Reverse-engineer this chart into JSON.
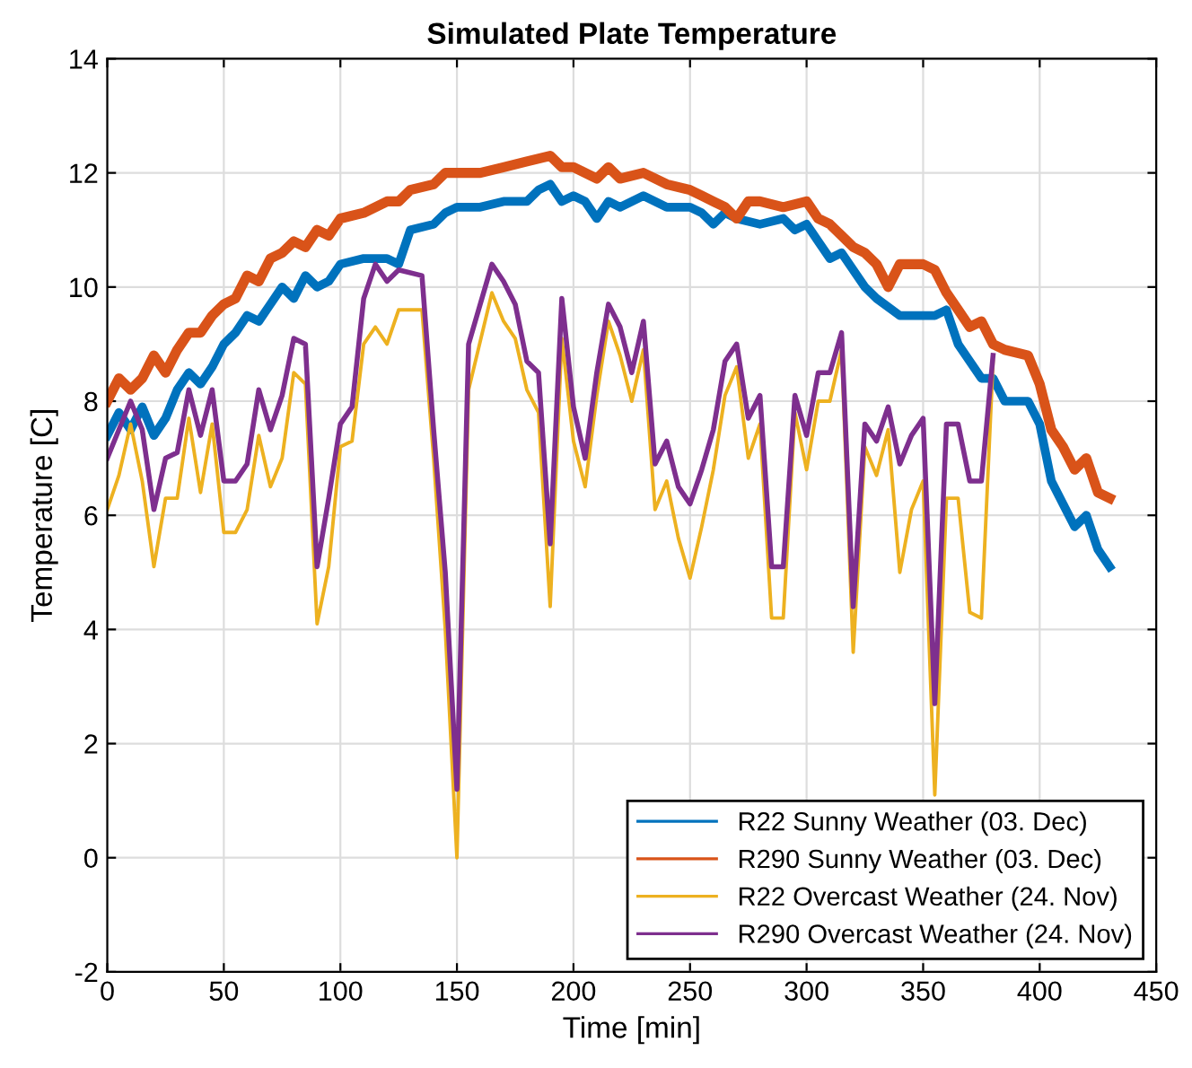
{
  "chart_data": {
    "type": "line",
    "title": "Simulated Plate Temperature",
    "xlabel": "Time [min]",
    "ylabel": "Temperature [C]",
    "xlim": [
      0,
      450
    ],
    "xticks": [
      0,
      50,
      100,
      150,
      200,
      250,
      300,
      350,
      400,
      450
    ],
    "ylim": [
      -2,
      14
    ],
    "yticks": [
      -2,
      0,
      2,
      4,
      6,
      8,
      10,
      12,
      14
    ],
    "grid": true,
    "legend": "bottom right",
    "line_style": "solid",
    "series": [
      {
        "name": "R22 Sunny Weather (03. Dec)",
        "color": "#0072bd",
        "x": [
          0,
          5,
          10,
          15,
          20,
          25,
          30,
          35,
          40,
          45,
          50,
          55,
          60,
          65,
          70,
          75,
          80,
          85,
          90,
          95,
          100,
          110,
          120,
          125,
          130,
          140,
          145,
          150,
          160,
          170,
          180,
          185,
          190,
          195,
          200,
          205,
          210,
          215,
          220,
          230,
          240,
          250,
          255,
          260,
          265,
          270,
          280,
          290,
          295,
          300,
          305,
          310,
          315,
          320,
          325,
          330,
          340,
          350,
          355,
          360,
          365,
          370,
          375,
          380,
          385,
          395,
          400,
          405,
          410,
          415,
          420,
          425,
          430
        ],
        "values": [
          7.4,
          7.8,
          7.5,
          7.9,
          7.4,
          7.7,
          8.2,
          8.5,
          8.3,
          8.6,
          9.0,
          9.2,
          9.5,
          9.4,
          9.7,
          10.0,
          9.8,
          10.2,
          10.0,
          10.1,
          10.4,
          10.5,
          10.5,
          10.4,
          11.0,
          11.1,
          11.3,
          11.4,
          11.4,
          11.5,
          11.5,
          11.7,
          11.8,
          11.5,
          11.6,
          11.5,
          11.2,
          11.5,
          11.4,
          11.6,
          11.4,
          11.4,
          11.3,
          11.1,
          11.3,
          11.2,
          11.1,
          11.2,
          11.0,
          11.1,
          10.8,
          10.5,
          10.6,
          10.3,
          10.0,
          9.8,
          9.5,
          9.5,
          9.5,
          9.6,
          9.0,
          8.7,
          8.4,
          8.4,
          8.0,
          8.0,
          7.6,
          6.6,
          6.2,
          5.8,
          6.0,
          5.4,
          5.1
        ]
      },
      {
        "name": "R290 Sunny Weather (03. Dec)",
        "color": "#d95319",
        "x": [
          0,
          5,
          10,
          15,
          20,
          25,
          30,
          35,
          40,
          45,
          50,
          55,
          60,
          65,
          70,
          75,
          80,
          85,
          90,
          95,
          100,
          110,
          120,
          125,
          130,
          140,
          145,
          150,
          160,
          170,
          180,
          190,
          195,
          200,
          210,
          215,
          220,
          230,
          240,
          250,
          255,
          260,
          265,
          270,
          275,
          280,
          290,
          300,
          305,
          310,
          315,
          320,
          325,
          330,
          335,
          340,
          350,
          355,
          360,
          365,
          370,
          375,
          380,
          385,
          395,
          400,
          405,
          410,
          415,
          420,
          425,
          430
        ],
        "values": [
          8.0,
          8.4,
          8.2,
          8.4,
          8.8,
          8.5,
          8.9,
          9.2,
          9.2,
          9.5,
          9.7,
          9.8,
          10.2,
          10.1,
          10.5,
          10.6,
          10.8,
          10.7,
          11.0,
          10.9,
          11.2,
          11.3,
          11.5,
          11.5,
          11.7,
          11.8,
          12.0,
          12.0,
          12.0,
          12.1,
          12.2,
          12.3,
          12.1,
          12.1,
          11.9,
          12.1,
          11.9,
          12.0,
          11.8,
          11.7,
          11.6,
          11.5,
          11.4,
          11.2,
          11.5,
          11.5,
          11.4,
          11.5,
          11.2,
          11.1,
          10.9,
          10.7,
          10.6,
          10.4,
          10.0,
          10.4,
          10.4,
          10.3,
          9.9,
          9.6,
          9.3,
          9.4,
          9.0,
          8.9,
          8.8,
          8.3,
          7.5,
          7.2,
          6.8,
          7.0,
          6.4,
          6.3
        ]
      },
      {
        "name": "R22 Overcast Weather (24. Nov)",
        "color": "#edb120",
        "x": [
          0,
          5,
          10,
          15,
          20,
          25,
          30,
          35,
          40,
          45,
          50,
          55,
          60,
          65,
          70,
          75,
          80,
          85,
          90,
          95,
          100,
          105,
          110,
          115,
          120,
          125,
          135,
          140,
          145,
          150,
          155,
          165,
          170,
          175,
          180,
          185,
          190,
          195,
          200,
          205,
          210,
          215,
          220,
          225,
          230,
          235,
          240,
          245,
          250,
          255,
          260,
          265,
          270,
          275,
          280,
          285,
          290,
          295,
          300,
          305,
          310,
          315,
          320,
          325,
          330,
          335,
          340,
          345,
          350,
          355,
          360,
          365,
          370,
          375,
          380
        ],
        "values": [
          6.1,
          6.7,
          7.6,
          6.6,
          5.1,
          6.3,
          6.3,
          7.7,
          6.4,
          7.6,
          5.7,
          5.7,
          6.1,
          7.4,
          6.5,
          7.0,
          8.5,
          8.3,
          4.1,
          5.1,
          7.2,
          7.3,
          9.0,
          9.3,
          9.0,
          9.6,
          9.6,
          7.0,
          4.0,
          0.0,
          8.2,
          9.9,
          9.4,
          9.1,
          8.2,
          7.8,
          4.4,
          9.1,
          7.3,
          6.5,
          8.1,
          9.4,
          8.8,
          8.0,
          8.9,
          6.1,
          6.6,
          5.6,
          4.9,
          5.8,
          6.8,
          8.1,
          8.6,
          7.0,
          7.6,
          4.2,
          4.2,
          7.8,
          6.8,
          8.0,
          8.0,
          8.9,
          3.6,
          7.2,
          6.7,
          7.5,
          5.0,
          6.1,
          6.6,
          1.1,
          6.3,
          6.3,
          4.3,
          4.2,
          8.7
        ]
      },
      {
        "name": "R290 Overcast Weather (24. Nov)",
        "color": "#7e2f8e",
        "x": [
          0,
          5,
          10,
          15,
          20,
          25,
          30,
          35,
          40,
          45,
          50,
          55,
          60,
          65,
          70,
          75,
          80,
          85,
          90,
          95,
          100,
          105,
          110,
          115,
          120,
          125,
          135,
          140,
          145,
          150,
          155,
          165,
          170,
          175,
          180,
          185,
          190,
          195,
          200,
          205,
          210,
          215,
          220,
          225,
          230,
          235,
          240,
          245,
          250,
          255,
          260,
          265,
          270,
          275,
          280,
          285,
          290,
          295,
          300,
          305,
          310,
          315,
          320,
          325,
          330,
          335,
          340,
          345,
          350,
          355,
          360,
          365,
          370,
          375,
          380
        ],
        "values": [
          7.0,
          7.5,
          8.0,
          7.5,
          6.1,
          7.0,
          7.1,
          8.2,
          7.4,
          8.2,
          6.6,
          6.6,
          6.9,
          8.2,
          7.5,
          8.1,
          9.1,
          9.0,
          5.1,
          6.3,
          7.6,
          7.9,
          9.8,
          10.4,
          10.1,
          10.3,
          10.2,
          7.5,
          5.0,
          1.2,
          9.0,
          10.4,
          10.1,
          9.7,
          8.7,
          8.5,
          5.5,
          9.8,
          7.9,
          7.0,
          8.5,
          9.7,
          9.3,
          8.5,
          9.4,
          6.9,
          7.3,
          6.5,
          6.2,
          6.8,
          7.5,
          8.7,
          9.0,
          7.7,
          8.1,
          5.1,
          5.1,
          8.1,
          7.4,
          8.5,
          8.5,
          9.2,
          4.4,
          7.6,
          7.3,
          7.9,
          6.9,
          7.4,
          7.7,
          2.7,
          7.6,
          7.6,
          6.6,
          6.6,
          8.8
        ]
      }
    ]
  }
}
